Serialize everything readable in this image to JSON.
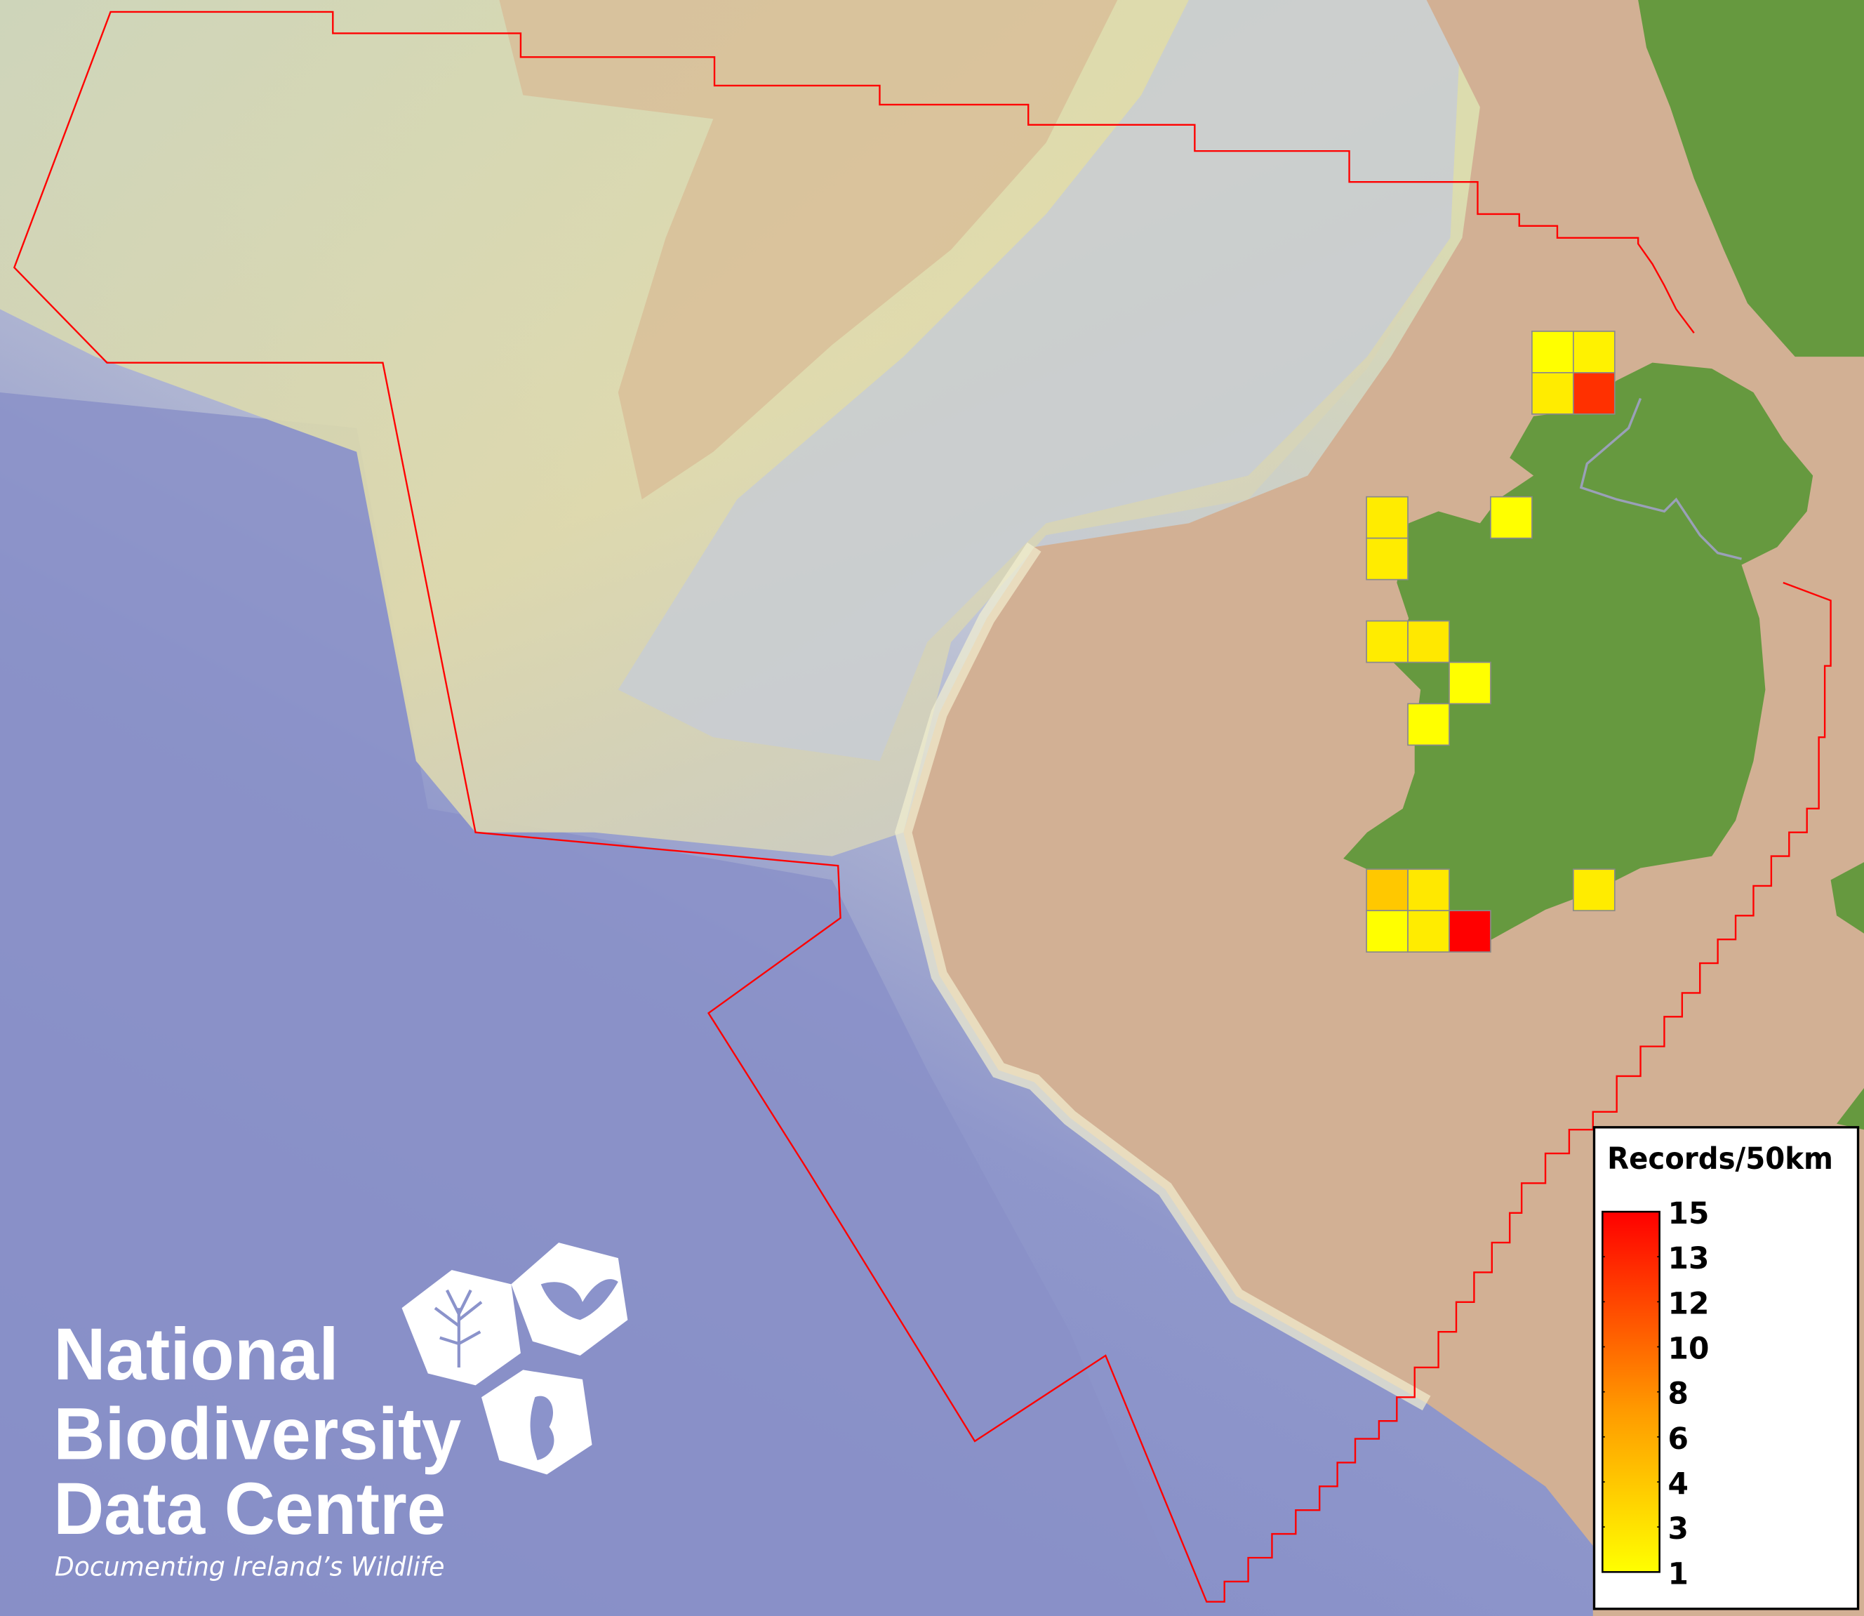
{
  "map": {
    "colors": {
      "deep_ocean": "#7e86c4",
      "mid_ocean": "#b9bfd6",
      "shallow_plateau": "#dcdcae",
      "shelf": "#d2b094",
      "land": "#66993f",
      "boundary": "#ff0000",
      "border": "#9aa0b8"
    },
    "cells": [
      {
        "value": 1,
        "color": "#ffff00"
      },
      {
        "value": 2,
        "color": "#fff200"
      },
      {
        "value": 2,
        "color": "#ffec00"
      },
      {
        "value": 14,
        "color": "#ff3000"
      },
      {
        "value": 2,
        "color": "#ffec00"
      },
      {
        "value": 2,
        "color": "#ffec00"
      },
      {
        "value": 1,
        "color": "#ffff00"
      },
      {
        "value": 2,
        "color": "#ffec00"
      },
      {
        "value": 2,
        "color": "#ffe800"
      },
      {
        "value": 1,
        "color": "#ffff00"
      },
      {
        "value": 1,
        "color": "#ffff00"
      },
      {
        "value": 4,
        "color": "#ffc800"
      },
      {
        "value": 2,
        "color": "#ffe800"
      },
      {
        "value": 1,
        "color": "#ffff00"
      },
      {
        "value": 2,
        "color": "#ffec00"
      },
      {
        "value": 15,
        "color": "#ff0000"
      },
      {
        "value": 2,
        "color": "#ffec00"
      }
    ]
  },
  "legend": {
    "title": "Records/50km",
    "color_low": "#ffff00",
    "color_mid": "#ff8800",
    "color_high": "#ff0000",
    "ticks": [
      "15",
      "13",
      "12",
      "10",
      "8",
      "6",
      "4",
      "3",
      "1"
    ]
  },
  "logo": {
    "line1": "National",
    "line2": "Biodiversity",
    "line3": "Data Centre",
    "tagline": "Documenting Ireland’s Wildlife",
    "icons": [
      "tree-icon",
      "butterfly-icon",
      "seahorse-icon"
    ]
  }
}
